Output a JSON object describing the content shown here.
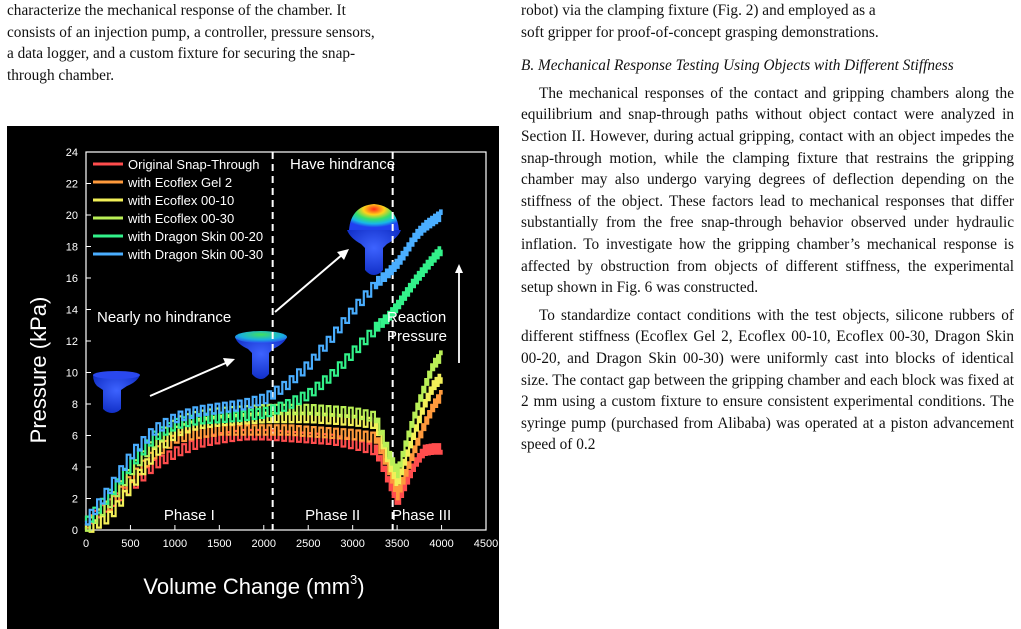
{
  "left_text": {
    "lines": [
      "characterize the mechanical response of the chamber. It",
      "consists of an injection pump, a controller, pressure sensors,",
      "a data logger, and a custom fixture for securing the snap-",
      "through chamber."
    ]
  },
  "right_text": {
    "intro_lines": [
      "robot) via the clamping fixture (Fig. 2) and employed as a",
      "soft gripper for proof-of-concept grasping demonstrations."
    ],
    "section_heading": "B. Mechanical Response Testing Using Objects with Different Stiffness",
    "paragraph_1": "The mechanical responses of the contact and gripping chambers along the equilibrium and snap-through paths without object contact were analyzed in Section II. However, during actual gripping, contact with an object impedes the snap-through motion, while the clamping fixture that restrains the gripping chamber may also undergo varying degrees of deflection depending on the stiffness of the object. These factors lead to mechanical responses that differ substantially from the free snap-through behavior observed under hydraulic inflation. To investigate how the gripping chamber’s mechanical response is affected by obstruction from objects of different stiffness, the experimental setup shown in Fig. 6 was constructed.",
    "paragraph_2": "To standardize contact conditions with the test objects, silicone rubbers of different stiffness (Ecoflex Gel 2, Ecoflex 00-10, Ecoflex 00-30, Dragon Skin 00-20, and Dragon Skin 00-30) were uniformly cast into blocks of identical size. The contact gap between the gripping chamber and each block was fixed at 2 mm using a custom fixture to ensure consistent experimental conditions. The syringe pump (purchased from Alibaba) was operated at a piston advancement speed of 0.2"
  },
  "chart_data": {
    "type": "line",
    "xlabel": "Volume Change (mm³)",
    "ylabel": "Pressure (kPa)",
    "xlim": [
      0,
      4500
    ],
    "ylim": [
      0,
      24
    ],
    "xticks": [
      "0",
      "500",
      "1000",
      "1500",
      "2000",
      "2500",
      "3000",
      "3500",
      "4000",
      "4500"
    ],
    "yticks": [
      "0",
      "2",
      "4",
      "6",
      "8",
      "10",
      "12",
      "14",
      "16",
      "18",
      "20",
      "22",
      "24"
    ],
    "legend_position": "top-left",
    "background": "#000000",
    "phase_boundaries": [
      2100,
      3450
    ],
    "phase_labels": [
      "Phase I",
      "Phase II",
      "Phase III"
    ],
    "annotations": {
      "nearly_no_hindrance": "Nearly no hindrance",
      "have_hindrance": "Have hindrance",
      "reaction": "Reaction",
      "pressure": "Pressure"
    },
    "x": [
      0,
      250,
      500,
      750,
      1000,
      1250,
      1500,
      1750,
      2000,
      2250,
      2500,
      2750,
      3000,
      3250,
      3400,
      3500,
      3600,
      3700,
      3800,
      3900,
      4000
    ],
    "series": [
      {
        "name": "Original Snap-Through",
        "color": "#ff4d4d",
        "values": [
          0.5,
          1.6,
          2.7,
          4.1,
          4.9,
          5.5,
          5.8,
          6.0,
          6.0,
          5.9,
          5.8,
          5.7,
          5.4,
          5.0,
          3.0,
          1.7,
          3.0,
          4.2,
          5.0,
          5.1,
          5.1
        ]
      },
      {
        "name": "with Ecoflex Gel 2",
        "color": "#ff9a3c",
        "values": [
          0.4,
          1.5,
          3.3,
          4.8,
          5.8,
          6.1,
          6.3,
          6.3,
          6.3,
          6.3,
          6.2,
          6.1,
          6.0,
          5.8,
          3.8,
          2.2,
          3.7,
          5.2,
          6.6,
          7.8,
          8.6
        ]
      },
      {
        "name": "with Ecoflex 00-10",
        "color": "#f2f058",
        "values": [
          0.0,
          0.8,
          2.8,
          4.8,
          6.2,
          6.7,
          6.9,
          7.0,
          7.1,
          7.1,
          7.1,
          7.0,
          6.9,
          6.7,
          4.2,
          2.9,
          4.7,
          6.3,
          7.9,
          9.1,
          9.7
        ]
      },
      {
        "name": "with Ecoflex 00-30",
        "color": "#b9ef56",
        "values": [
          0.2,
          1.7,
          3.8,
          5.5,
          6.8,
          7.2,
          7.4,
          7.5,
          7.6,
          7.6,
          7.6,
          7.5,
          7.4,
          7.1,
          4.8,
          3.6,
          5.6,
          7.4,
          9.0,
          10.4,
          11.1
        ]
      },
      {
        "name": "with Dragon Skin 00-20",
        "color": "#32f28a",
        "values": [
          0.5,
          2.2,
          4.2,
          5.9,
          6.7,
          7.0,
          7.1,
          7.2,
          7.4,
          7.9,
          8.6,
          9.8,
          11.3,
          12.8,
          13.5,
          14.2,
          15.0,
          15.8,
          16.5,
          17.2,
          17.8
        ]
      },
      {
        "name": "with Dragon Skin 00-30",
        "color": "#4aaeff",
        "values": [
          0.6,
          2.6,
          4.8,
          6.3,
          7.1,
          7.5,
          7.7,
          7.9,
          8.3,
          9.2,
          10.5,
          12.2,
          14.0,
          15.6,
          16.3,
          16.9,
          17.7,
          18.6,
          19.2,
          19.6,
          20.0
        ]
      }
    ]
  }
}
